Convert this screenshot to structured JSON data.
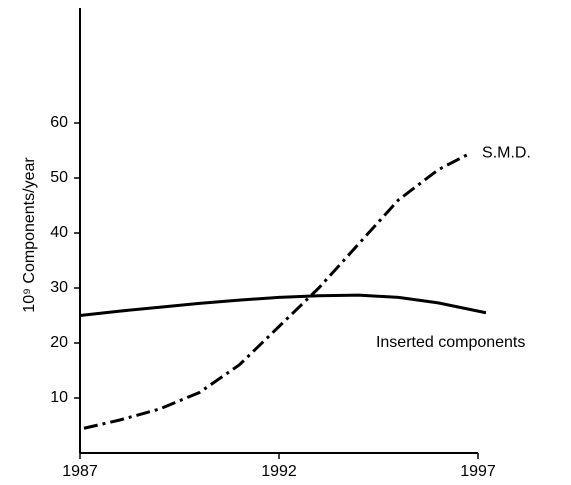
{
  "chart_data": {
    "type": "line",
    "ylabel": "10⁹ Components/year",
    "xlim": [
      1987,
      1997
    ],
    "xticks": [
      1987,
      1992,
      1997
    ],
    "ylim": [
      0,
      80
    ],
    "yticks": [
      10,
      20,
      30,
      40,
      50,
      60
    ],
    "grid": false,
    "series": [
      {
        "name": "Inserted components",
        "color": "#000000",
        "dash": "solid",
        "x": [
          1987,
          1988,
          1989,
          1990,
          1991,
          1992,
          1993,
          1994,
          1995,
          1996,
          1997.2
        ],
        "values": [
          25,
          25.8,
          26.5,
          27.2,
          27.8,
          28.3,
          28.6,
          28.7,
          28.3,
          27.3,
          25.5
        ]
      },
      {
        "name": "S.M.D.",
        "color": "#000000",
        "dash": "dashdot",
        "x": [
          1987.1,
          1988,
          1989,
          1990,
          1991,
          1992,
          1993,
          1994,
          1995,
          1996,
          1996.8
        ],
        "values": [
          4.5,
          6,
          8,
          11,
          16,
          23,
          30,
          38,
          46,
          51.5,
          54.5
        ]
      }
    ]
  }
}
